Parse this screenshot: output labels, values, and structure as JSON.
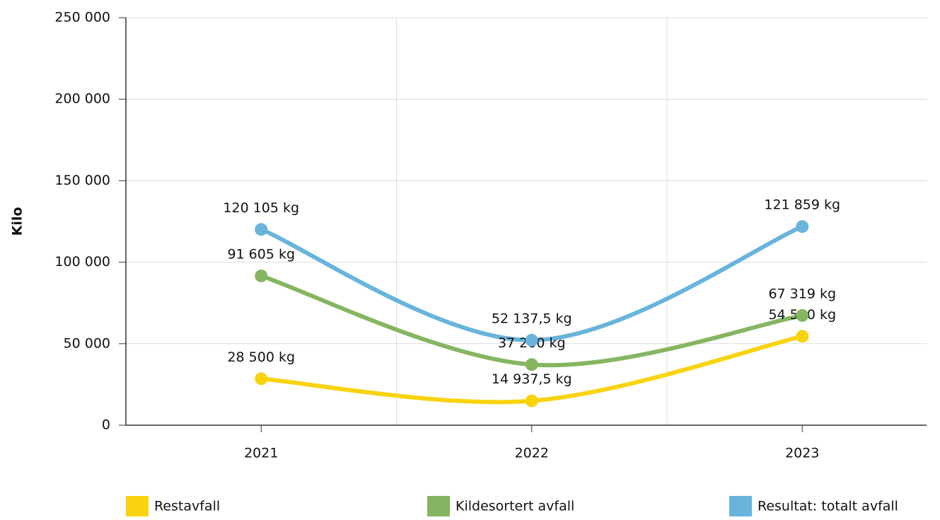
{
  "chart_data": {
    "type": "line",
    "y_label": "Kilo",
    "categories": [
      "2021",
      "2022",
      "2023"
    ],
    "series": [
      {
        "name": "Restavfall",
        "color": "#f9d30f",
        "values": [
          28500,
          14937.5,
          54540
        ],
        "value_labels": [
          "28 500 kg",
          "14 937,5 kg",
          "54 540 kg"
        ]
      },
      {
        "name": "Kildesortert avfall",
        "color": "#86b561",
        "values": [
          91605,
          37200,
          67319
        ],
        "value_labels": [
          "91 605 kg",
          "37 200 kg",
          "67 319 kg"
        ]
      },
      {
        "name": "Resultat: totalt avfall",
        "color": "#68b4db",
        "values": [
          120105,
          52137.5,
          121859
        ],
        "value_labels": [
          "120 105 kg",
          "52 137,5 kg",
          "121 859 kg"
        ]
      }
    ],
    "ylim": [
      0,
      250000
    ],
    "yticks": [
      0,
      {
        "value": 50000,
        "label": "50 000"
      },
      {
        "value": 100000,
        "label": "100 000"
      },
      {
        "value": 150000,
        "label": "150 000"
      },
      {
        "value": 200000,
        "label": "200 000"
      },
      {
        "value": 250000,
        "label": "250 000"
      }
    ],
    "grid": true
  }
}
